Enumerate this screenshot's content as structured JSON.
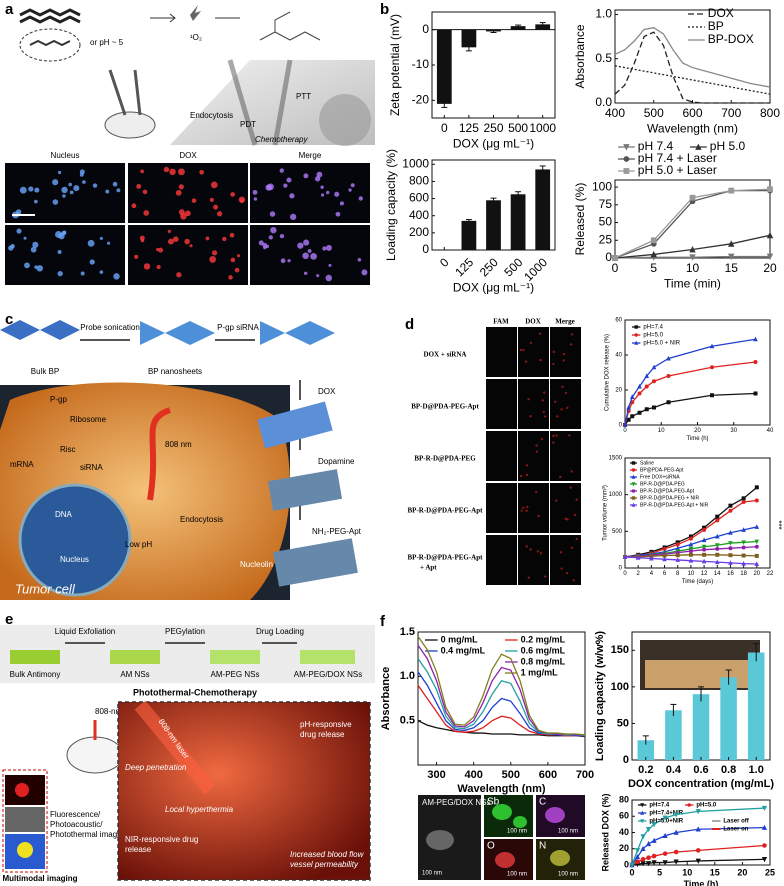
{
  "panel_a": {
    "label": "a",
    "scheme": {
      "condition": "or pH ~ 5",
      "singlet_oxygen": "¹O₂",
      "ptt": "PTT",
      "endocytosis": "Endocytosis",
      "pdt": "PDT",
      "chemotherapy": "Chemotherapy"
    },
    "columns": [
      "Nucleus",
      "DOX",
      "Merge"
    ]
  },
  "panel_b": {
    "label": "b"
  },
  "panel_c": {
    "label": "c",
    "steps": [
      "Probe sonication",
      "P-gp siRNA"
    ],
    "materials": [
      "Bulk BP",
      "BP nanosheets"
    ],
    "reagents": [
      "DOX",
      "Dopamine",
      "NH₂-PEG-Apt"
    ],
    "cell": [
      "P-gp",
      "Ribosome",
      "Risc",
      "mRNA",
      "siRNA",
      "808 nm",
      "Endocytosis",
      "DNA",
      "Nucleus",
      "Low pH",
      "Nucleolin",
      "Tumor cell"
    ]
  },
  "panel_d": {
    "label": "d",
    "columns": [
      "FAM",
      "DOX",
      "Merge"
    ],
    "rows": [
      "DOX + siRNA",
      "BP-D@PDA-PEG-Apt",
      "BP-R-D@PDA-PEG",
      "BP-R-D@PDA-PEG-Apt",
      "BP-R-D@PDA-PEG-Apt",
      "+ Apt"
    ],
    "significance": "***"
  },
  "panel_e": {
    "label": "e",
    "steps": [
      "Liquid Exfoliation",
      "PEGylation",
      "Drug Loading"
    ],
    "materials": [
      "Bulk Antimony",
      "AM NSs",
      "AM-PEG NSs",
      "AM-PEG/DOX NSs"
    ],
    "title": "Photothermal-Chemotherapy",
    "laser": "808-nm laser",
    "imaging": [
      "Fluorescence/",
      "Photoacoustic/",
      "Photothermal imaging"
    ],
    "imaging_title": "Multimodal imaging",
    "inset": [
      "808-nm laser",
      "pH-responsive",
      "drug release",
      "Deep penetration",
      "Local hyperthermia",
      "NIR-responsive drug",
      "release",
      "Increased blood flow",
      "vessel permeability"
    ]
  },
  "panel_f": {
    "label": "f",
    "image_title": "AM-PEG/DOX NSs",
    "elements": [
      "Sb",
      "C",
      "O",
      "N"
    ],
    "scale_bars": [
      "100 nm",
      "100 nm",
      "100 nm",
      "100 nm",
      "100 nm"
    ]
  },
  "chart_data": [
    {
      "type": "bar",
      "x_label": "DOX (μg mL⁻¹)",
      "y_label": "Zeta potential (mV)",
      "categories": [
        "0",
        "125",
        "250",
        "500",
        "1000"
      ],
      "values": [
        -21,
        -5,
        -0.5,
        1,
        1.5
      ],
      "errors": [
        1,
        1,
        0.3,
        0.3,
        0.5
      ],
      "color": "#111111",
      "ylim": [
        -25,
        5
      ],
      "yticks": [
        -20,
        -10,
        0
      ]
    },
    {
      "type": "line",
      "x_label": "Wavelength (nm)",
      "y_label": "Absorbance",
      "x": [
        400,
        425,
        450,
        475,
        500,
        525,
        550,
        575,
        600,
        625,
        650,
        675,
        700,
        725,
        750,
        775,
        800
      ],
      "xlim": [
        400,
        800
      ],
      "xticks": [
        400,
        500,
        600,
        700,
        800
      ],
      "ylim": [
        0,
        1.05
      ],
      "yticks": [
        {
          "value": 0,
          "label": "0.0"
        },
        0.5,
        {
          "value": 1,
          "label": "1.0"
        }
      ],
      "series": [
        {
          "name": "DOX",
          "color": "#222222",
          "dash": "dashed",
          "values": [
            0.1,
            0.2,
            0.45,
            0.75,
            0.8,
            0.65,
            0.3,
            0.05,
            0.01,
            0,
            0,
            0,
            0,
            0,
            0,
            0,
            0
          ]
        },
        {
          "name": "BP",
          "color": "#222222",
          "dash": "dotted",
          "values": [
            0.42,
            0.4,
            0.38,
            0.36,
            0.34,
            0.32,
            0.3,
            0.28,
            0.26,
            0.24,
            0.22,
            0.2,
            0.18,
            0.16,
            0.14,
            0.12,
            0.1
          ]
        },
        {
          "name": "BP-DOX",
          "color": "#888888",
          "values": [
            0.55,
            0.6,
            0.7,
            0.83,
            0.85,
            0.78,
            0.6,
            0.45,
            0.4,
            0.37,
            0.34,
            0.31,
            0.28,
            0.25,
            0.22,
            0.2,
            0.18
          ]
        }
      ]
    },
    {
      "type": "bar",
      "x_label": "DOX (μg mL⁻¹)",
      "y_label": "Loading capacity (%)",
      "categories": [
        "0",
        "125",
        "250",
        "500",
        "1000"
      ],
      "values": [
        0,
        340,
        580,
        650,
        940
      ],
      "errors": [
        0,
        15,
        25,
        30,
        40
      ],
      "color": "#111111",
      "ylim": [
        0,
        1050
      ],
      "yticks": [
        0,
        200,
        400,
        600,
        800,
        1000
      ]
    },
    {
      "type": "line",
      "x_label": "Time (min)",
      "y_label": "Released (%)",
      "x": [
        0,
        5,
        10,
        15,
        20
      ],
      "xlim": [
        0,
        20
      ],
      "xticks": [
        0,
        5,
        10,
        15,
        20
      ],
      "ylim": [
        0,
        110
      ],
      "yticks": [
        0,
        25,
        50,
        75,
        100
      ],
      "series": [
        {
          "name": "pH 7.4",
          "color": "#777777",
          "marker": "tri-down",
          "values": [
            0,
            1,
            1,
            2,
            2
          ]
        },
        {
          "name": "pH 5.0",
          "color": "#333333",
          "marker": "tri-up",
          "values": [
            0,
            5,
            12,
            20,
            32
          ]
        },
        {
          "name": "pH 7.4 + Laser",
          "color": "#555555",
          "marker": "circle",
          "values": [
            0,
            20,
            80,
            95,
            95
          ]
        },
        {
          "name": "pH 5.0 + Laser",
          "color": "#999999",
          "marker": "square",
          "values": [
            0,
            25,
            85,
            95,
            97
          ]
        }
      ]
    },
    {
      "type": "line",
      "x_label": "Time (h)",
      "y_label": "Cumulative DOX release (%)",
      "x": [
        0,
        1,
        2,
        4,
        6,
        8,
        12,
        24,
        36
      ],
      "xlim": [
        0,
        40
      ],
      "xticks": [
        0,
        10,
        20,
        30,
        40
      ],
      "ylim": [
        0,
        60
      ],
      "yticks": [
        0,
        20,
        40,
        60
      ],
      "series": [
        {
          "name": "pH=7.4",
          "color": "#111111",
          "marker": "square",
          "values": [
            0,
            3,
            5,
            7,
            9,
            10,
            13,
            17,
            18
          ]
        },
        {
          "name": "pH=5.0",
          "color": "#e02020",
          "marker": "circle",
          "values": [
            0,
            8,
            13,
            18,
            22,
            25,
            28,
            33,
            36
          ]
        },
        {
          "name": "pH=5.0 + NIR",
          "color": "#2040d0",
          "marker": "tri-up",
          "values": [
            0,
            10,
            16,
            22,
            28,
            33,
            38,
            45,
            49
          ]
        }
      ]
    },
    {
      "type": "line",
      "x_label": "Time (days)",
      "y_label": "Tumor volume (mm³)",
      "x": [
        0,
        2,
        4,
        6,
        8,
        10,
        12,
        14,
        16,
        18,
        20
      ],
      "xlim": [
        0,
        22
      ],
      "xticks": [
        0,
        2,
        4,
        6,
        8,
        10,
        12,
        14,
        16,
        18,
        20,
        22
      ],
      "ylim": [
        0,
        1500
      ],
      "yticks": [
        0,
        500,
        1000,
        1500
      ],
      "series": [
        {
          "name": "Saline",
          "color": "#111111",
          "marker": "square",
          "values": [
            150,
            180,
            220,
            280,
            350,
            430,
            550,
            700,
            850,
            950,
            1100
          ]
        },
        {
          "name": "BP@PDA-PEG-Apt",
          "color": "#e02020",
          "marker": "circle",
          "values": [
            150,
            170,
            200,
            260,
            320,
            400,
            520,
            650,
            780,
            900,
            920
          ]
        },
        {
          "name": "Free DOX+siRNA",
          "color": "#2040d0",
          "marker": "tri-up",
          "values": [
            150,
            170,
            190,
            220,
            270,
            320,
            380,
            430,
            480,
            520,
            560
          ]
        },
        {
          "name": "BP-R-D@PDA-PEG",
          "color": "#20a020",
          "marker": "tri-down",
          "values": [
            150,
            160,
            180,
            200,
            230,
            260,
            290,
            310,
            340,
            350,
            360
          ]
        },
        {
          "name": "BP-R-D@PDA-PEG-Apt",
          "color": "#9020b0",
          "marker": "circle",
          "values": [
            150,
            160,
            175,
            190,
            210,
            230,
            250,
            260,
            270,
            280,
            290
          ]
        },
        {
          "name": "BP-R-D@PDA-PEG + NIR",
          "color": "#806020",
          "marker": "square",
          "values": [
            150,
            150,
            160,
            170,
            175,
            180,
            180,
            180,
            175,
            170,
            165
          ]
        },
        {
          "name": "BP-R-D@PDA-PEG-Apt + NIR",
          "color": "#6a3de8",
          "marker": "tri-up",
          "values": [
            150,
            140,
            130,
            120,
            110,
            100,
            90,
            80,
            70,
            60,
            55
          ]
        }
      ]
    },
    {
      "type": "line",
      "x_label": "Wavelength (nm)",
      "y_label": "Absorbance",
      "x": [
        250,
        275,
        300,
        325,
        350,
        375,
        400,
        425,
        450,
        475,
        500,
        525,
        550,
        575,
        600,
        625,
        650,
        675,
        700
      ],
      "xlim": [
        250,
        700
      ],
      "xticks": [
        300,
        400,
        500,
        600,
        700
      ],
      "ylim": [
        0,
        1.5
      ],
      "yticks": [
        0.5,
        {
          "value": 1,
          "label": "1.0"
        },
        1.5
      ],
      "series": [
        {
          "name": "0 mg/mL",
          "color": "#111111",
          "values": [
            0.5,
            0.45,
            0.42,
            0.4,
            0.38,
            0.37,
            0.36,
            0.36,
            0.35,
            0.35,
            0.35,
            0.34,
            0.34,
            0.34,
            0.33,
            0.33,
            0.33,
            0.33,
            0.32
          ]
        },
        {
          "name": "0.2 mg/mL",
          "color": "#e02020",
          "values": [
            0.9,
            0.75,
            0.6,
            0.45,
            0.38,
            0.37,
            0.38,
            0.42,
            0.5,
            0.55,
            0.53,
            0.45,
            0.38,
            0.35,
            0.34,
            0.34,
            0.33,
            0.33,
            0.33
          ]
        },
        {
          "name": "0.4 mg/mL",
          "color": "#2040d0",
          "values": [
            1.05,
            0.9,
            0.7,
            0.5,
            0.4,
            0.39,
            0.42,
            0.5,
            0.65,
            0.75,
            0.72,
            0.58,
            0.42,
            0.36,
            0.35,
            0.34,
            0.34,
            0.33,
            0.33
          ]
        },
        {
          "name": "0.6 mg/mL",
          "color": "#20a0a0",
          "values": [
            1.2,
            1.05,
            0.85,
            0.55,
            0.42,
            0.41,
            0.46,
            0.6,
            0.8,
            0.95,
            0.92,
            0.72,
            0.47,
            0.37,
            0.35,
            0.35,
            0.34,
            0.34,
            0.33
          ]
        },
        {
          "name": "0.8 mg/mL",
          "color": "#9020b0",
          "values": [
            1.35,
            1.2,
            0.95,
            0.6,
            0.44,
            0.43,
            0.5,
            0.7,
            0.95,
            1.1,
            1.07,
            0.85,
            0.52,
            0.38,
            0.36,
            0.35,
            0.35,
            0.34,
            0.34
          ]
        },
        {
          "name": "1 mg/mL",
          "color": "#808020",
          "values": [
            1.45,
            1.3,
            1.05,
            0.65,
            0.46,
            0.45,
            0.54,
            0.78,
            1.08,
            1.25,
            1.2,
            0.95,
            0.56,
            0.39,
            0.36,
            0.36,
            0.35,
            0.35,
            0.34
          ]
        }
      ]
    },
    {
      "type": "bar",
      "x_label": "DOX concentration (mg/mL)",
      "y_label": "Loading capacity (w/w%)",
      "categories": [
        "0.2",
        "0.4",
        "0.6",
        "0.8",
        "1.0"
      ],
      "values": [
        27,
        68,
        90,
        113,
        147
      ],
      "errors": [
        6,
        8,
        10,
        10,
        12
      ],
      "color": "#5bc8d8",
      "ylim": [
        0,
        175
      ],
      "yticks": [
        0,
        50,
        100,
        150
      ]
    },
    {
      "type": "line",
      "x_label": "Time (h)",
      "y_label": "Released DOX (%)",
      "x": [
        0,
        1,
        2,
        3,
        4,
        6,
        8,
        12,
        24
      ],
      "xlim": [
        0,
        25
      ],
      "xticks": [
        0,
        5,
        10,
        15,
        20,
        25
      ],
      "ylim": [
        0,
        80
      ],
      "yticks": [
        0,
        20,
        40,
        60,
        80
      ],
      "series": [
        {
          "name": "pH=7.4",
          "color": "#111111",
          "marker": "tri-down",
          "values": [
            0,
            1,
            2,
            2,
            3,
            3,
            4,
            5,
            7
          ]
        },
        {
          "name": "pH=5.0",
          "color": "#e02020",
          "marker": "circle",
          "values": [
            0,
            4,
            7,
            9,
            11,
            14,
            16,
            18,
            24
          ]
        },
        {
          "name": "pH=7.4+NIR",
          "color": "#2040d0",
          "marker": "tri-up",
          "values": [
            0,
            10,
            20,
            26,
            30,
            36,
            40,
            44,
            46
          ]
        },
        {
          "name": "pH=5.0+NIR",
          "color": "#20a0a0",
          "marker": "tri-down",
          "values": [
            0,
            18,
            35,
            44,
            50,
            58,
            62,
            66,
            70
          ]
        }
      ],
      "extra_legend": [
        {
          "name": "Laser off",
          "color": "#aaaaaa"
        },
        {
          "name": "Laser on",
          "color": "#e02020"
        }
      ]
    }
  ]
}
